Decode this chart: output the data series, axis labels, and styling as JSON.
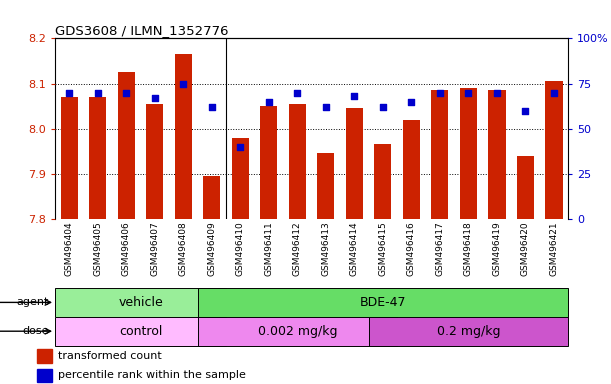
{
  "title": "GDS3608 / ILMN_1352776",
  "samples": [
    "GSM496404",
    "GSM496405",
    "GSM496406",
    "GSM496407",
    "GSM496408",
    "GSM496409",
    "GSM496410",
    "GSM496411",
    "GSM496412",
    "GSM496413",
    "GSM496414",
    "GSM496415",
    "GSM496416",
    "GSM496417",
    "GSM496418",
    "GSM496419",
    "GSM496420",
    "GSM496421"
  ],
  "bar_values": [
    8.07,
    8.07,
    8.125,
    8.055,
    8.165,
    7.895,
    7.98,
    8.05,
    8.055,
    7.945,
    8.045,
    7.965,
    8.02,
    8.085,
    8.09,
    8.085,
    7.94,
    8.105
  ],
  "dot_values": [
    70,
    70,
    70,
    67,
    75,
    62,
    40,
    65,
    70,
    62,
    68,
    62,
    65,
    70,
    70,
    70,
    60,
    70
  ],
  "bar_color": "#cc2200",
  "dot_color": "#0000cc",
  "ymin": 7.8,
  "ymax": 8.2,
  "y_ticks": [
    7.8,
    7.9,
    8.0,
    8.1,
    8.2
  ],
  "y2min": 0,
  "y2max": 100,
  "y2_ticks": [
    0,
    25,
    50,
    75,
    100
  ],
  "y2_tick_labels": [
    "0",
    "25",
    "50",
    "75",
    "100%"
  ],
  "agent_groups": [
    {
      "label": "vehicle",
      "start": 0,
      "end": 5,
      "color": "#99ee99"
    },
    {
      "label": "BDE-47",
      "start": 5,
      "end": 17,
      "color": "#66dd66"
    }
  ],
  "dose_groups": [
    {
      "label": "control",
      "start": 0,
      "end": 5,
      "color": "#ffbbff"
    },
    {
      "label": "0.002 mg/kg",
      "start": 5,
      "end": 11,
      "color": "#ee88ee"
    },
    {
      "label": "0.2 mg/kg",
      "start": 11,
      "end": 17,
      "color": "#cc55cc"
    }
  ],
  "legend_items": [
    {
      "label": "transformed count",
      "color": "#cc2200"
    },
    {
      "label": "percentile rank within the sample",
      "color": "#0000cc"
    }
  ],
  "bar_color_left": "#cc2200",
  "dot_color_left": "#0000cc",
  "grid_style": "dotted",
  "bar_width": 0.6,
  "base_value": 7.8,
  "n_samples": 18
}
